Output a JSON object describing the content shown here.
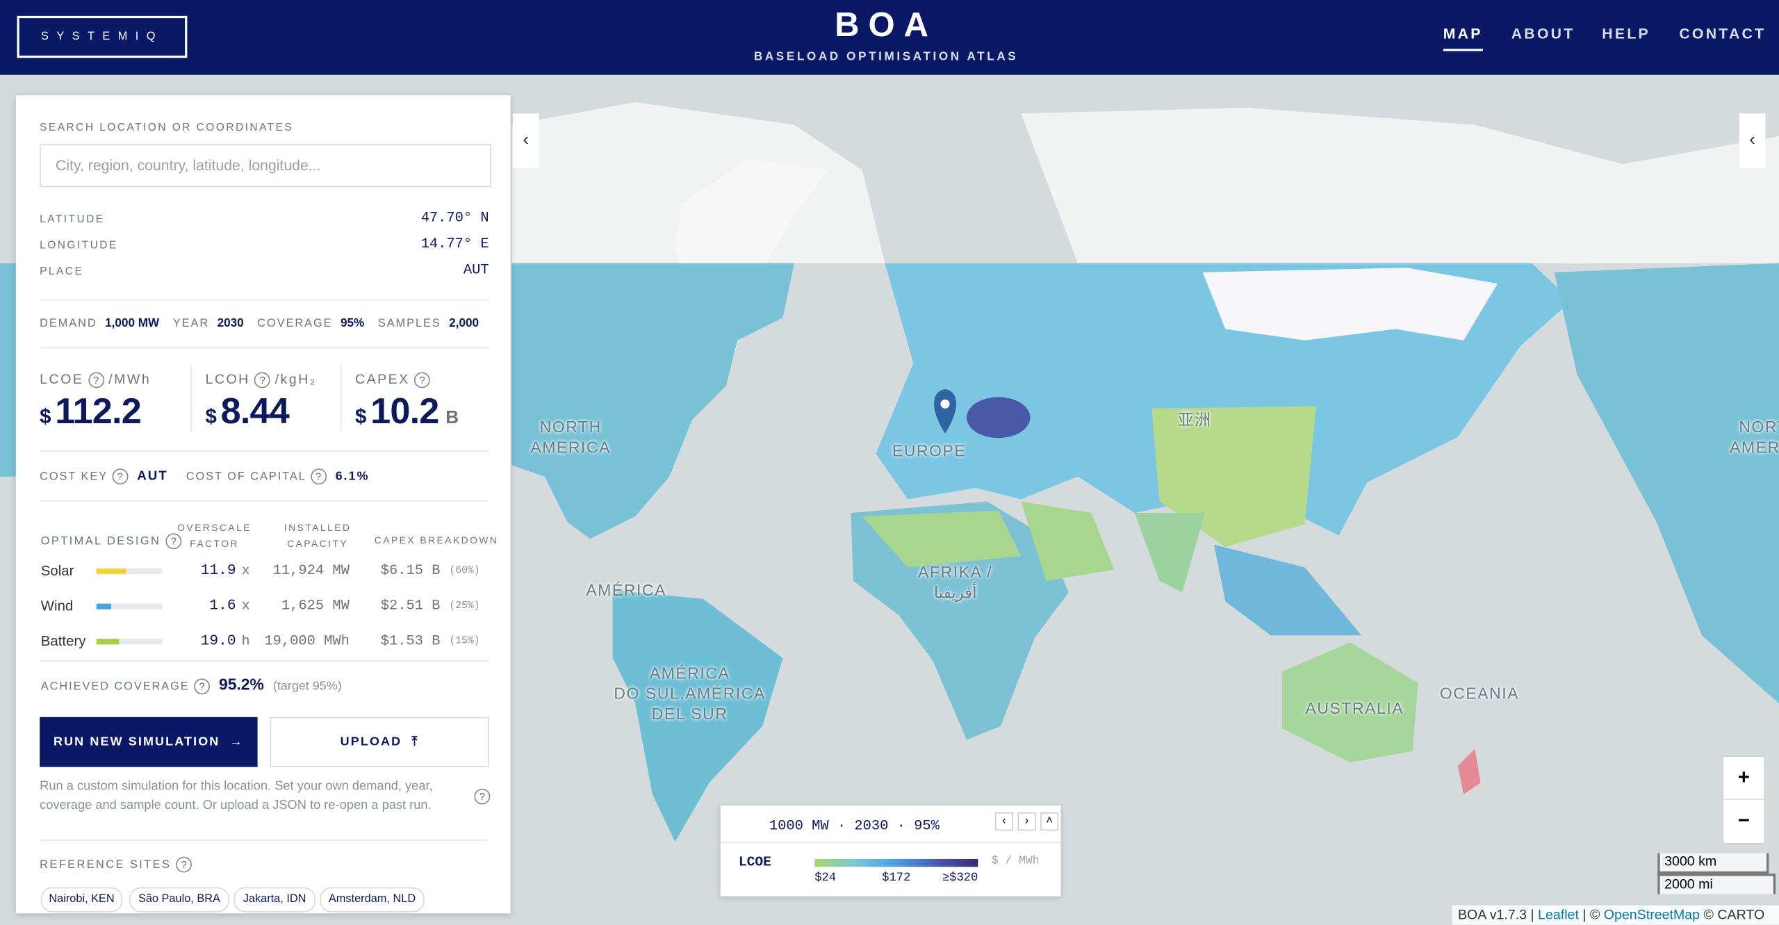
{
  "header": {
    "logo": "SYSTEMIQ",
    "title": "BOA",
    "subtitle": "BASELOAD OPTIMISATION ATLAS",
    "nav": [
      "MAP",
      "ABOUT",
      "HELP",
      "CONTACT"
    ]
  },
  "panel": {
    "search_label": "SEARCH LOCATION OR COORDINATES",
    "search_placeholder": "City, region, country, latitude, longitude...",
    "location": [
      {
        "label": "LATITUDE",
        "value": "47.70° N"
      },
      {
        "label": "LONGITUDE",
        "value": "14.77° E"
      },
      {
        "label": "PLACE",
        "value": "AUT"
      }
    ],
    "params": [
      {
        "label": "DEMAND",
        "value": "1,000 MW"
      },
      {
        "label": "YEAR",
        "value": "2030"
      },
      {
        "label": "COVERAGE",
        "value": "95%"
      },
      {
        "label": "SAMPLES",
        "value": "2,000"
      }
    ],
    "metrics": [
      {
        "label": "LCOE",
        "unit": "/MWh",
        "currency": "$",
        "value": "112.2"
      },
      {
        "label": "LCOH",
        "unit": "/kgH₂",
        "currency": "$",
        "value": "8.44"
      },
      {
        "label": "CAPEX",
        "currency": "$",
        "value": "10.2",
        "suffix": "B"
      }
    ],
    "help_icon": "?",
    "cost_key": {
      "label": "COST KEY",
      "value": "AUT"
    },
    "cost_of_capital": {
      "label": "COST OF CAPITAL",
      "value": "6.1%"
    },
    "design": {
      "headers": [
        "OPTIMAL DESIGN",
        "OVERSCALE FACTOR",
        "INSTALLED CAPACITY",
        "CAPEX BREAKDOWN"
      ],
      "rows": [
        {
          "name": "Solar",
          "bar": 45,
          "color": "#f2d43a",
          "factor": "11.9",
          "factor_unit": "x",
          "capacity": "11,924 MW",
          "capex": "$6.15 B",
          "share": "(60%)"
        },
        {
          "name": "Wind",
          "bar": 22,
          "color": "#4aa3df",
          "factor": "1.6",
          "factor_unit": "x",
          "capacity": "1,625 MW",
          "capex": "$2.51 B",
          "share": "(25%)"
        },
        {
          "name": "Battery",
          "bar": 35,
          "color": "#a9cf4a",
          "factor": "19.0",
          "factor_unit": "h",
          "capacity": "19,000 MWh",
          "capex": "$1.53 B",
          "share": "(15%)"
        }
      ]
    },
    "achieved": {
      "label": "ACHIEVED COVERAGE",
      "value": "95.2%",
      "target": "(target 95%)"
    },
    "buttons": {
      "run": "RUN NEW SIMULATION",
      "run_icon": "→",
      "upload": "UPLOAD",
      "upload_icon": "⤒"
    },
    "help_text": "Run a custom simulation for this location. Set your own demand, year, coverage and sample count. Or upload a JSON to re-open a past run.",
    "reference_label": "REFERENCE SITES",
    "reference_sites": [
      "Nairobi, KEN",
      "São Paulo, BRA",
      "Jakarta, IDN",
      "Amsterdam, NLD"
    ]
  },
  "map": {
    "labels": [
      "NORTH\nAMERICA",
      "EUROPE",
      "亚洲",
      "AMÉRICA",
      "AFRIKA /\nأفريقيا",
      "AMÉRICA\nDO SUL,AMÉRICA\nDEL SUR",
      "AUSTRALIA",
      "OCEANIA",
      "NORTH\nAMERICA"
    ],
    "collapse": "‹",
    "zoom_in": "+",
    "zoom_out": "−",
    "scale": [
      "3000 km",
      "2000 mi"
    ],
    "attribution": [
      "BOA v1.7.3 | ",
      "Leaflet",
      " | © ",
      "OpenStreetMap",
      " © CARTO"
    ]
  },
  "legend": {
    "summary": "1000 MW · 2030 · 95%",
    "metric": "LCOE",
    "unit": "$ / MWh",
    "arrows": [
      "‹",
      "›",
      "˄"
    ],
    "range": [
      24,
      320
    ],
    "colors": [
      "#a8d66a",
      "#7cc6d6",
      "#4a9fe0",
      "#4a5bb0",
      "#3b2a6e"
    ],
    "ticks": [
      {
        "value": 24,
        "label": "$24"
      },
      {
        "value": 172,
        "label": "$172"
      },
      {
        "value": 320,
        "label": "≥$320"
      }
    ]
  }
}
